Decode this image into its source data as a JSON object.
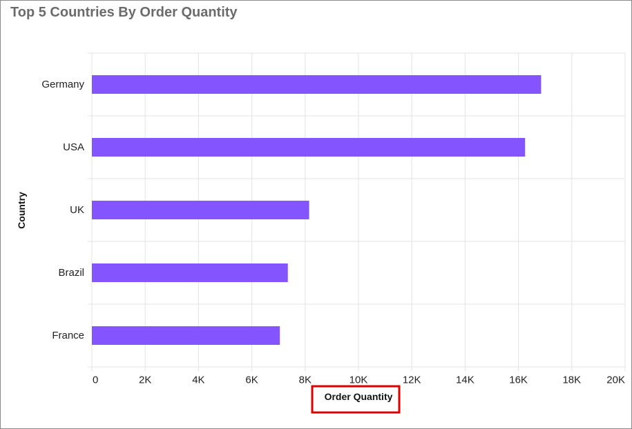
{
  "chart_data": {
    "type": "bar",
    "orientation": "horizontal",
    "title": "Top 5 Countries By Order Quantity",
    "xlabel": "Order Quantity",
    "ylabel": "Country",
    "categories": [
      "Germany",
      "USA",
      "UK",
      "Brazil",
      "France"
    ],
    "values": [
      16850,
      16250,
      8150,
      7350,
      7050
    ],
    "xlim": [
      0,
      20000
    ],
    "xticks": [
      0,
      2000,
      4000,
      6000,
      8000,
      10000,
      12000,
      14000,
      16000,
      18000,
      20000
    ],
    "xtick_labels": [
      "0",
      "2K",
      "4K",
      "6K",
      "8K",
      "10K",
      "12K",
      "14K",
      "16K",
      "18K",
      "20K"
    ],
    "grid": true,
    "bar_color": "#8454ff",
    "grid_color": "#e3e3e3",
    "highlight_color": "#e00000"
  }
}
